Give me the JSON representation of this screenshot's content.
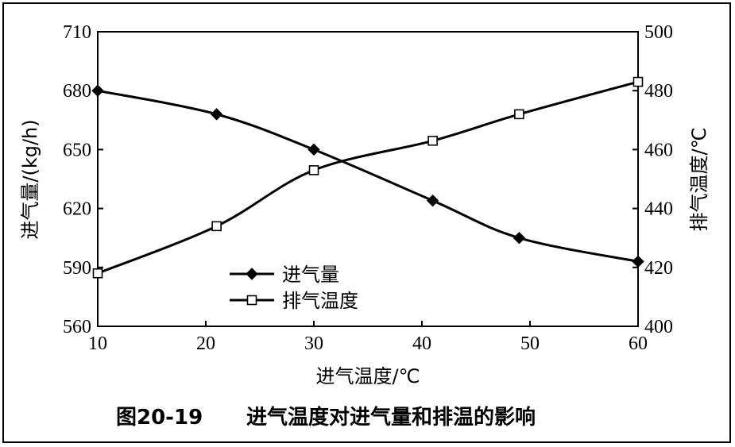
{
  "caption": {
    "number": "图20-19",
    "title": "进气温度对进气量和排温的影响"
  },
  "chart_data": {
    "type": "line",
    "xlabel": "进气温度/℃",
    "ylabel_left": "进气量/(kg/h)",
    "ylabel_right": "排气温度/℃",
    "xlim": [
      10,
      60
    ],
    "ylim_left": [
      560,
      710
    ],
    "ylim_right": [
      400,
      500
    ],
    "x_ticks": [
      "10",
      "20",
      "30",
      "40",
      "50",
      "60"
    ],
    "y_ticks_left": [
      "560",
      "590",
      "620",
      "650",
      "680",
      "710"
    ],
    "y_ticks_right": [
      "400",
      "420",
      "440",
      "460",
      "480",
      "500"
    ],
    "grid": false,
    "legend_position": "lower-left",
    "series": [
      {
        "name": "进气量",
        "axis": "left",
        "marker": "diamond-filled",
        "x": [
          10,
          21,
          30,
          41,
          49,
          60
        ],
        "y": [
          680,
          668,
          650,
          624,
          605,
          593
        ]
      },
      {
        "name": "排气温度",
        "axis": "right",
        "marker": "square-open",
        "x": [
          10,
          21,
          30,
          41,
          49,
          60
        ],
        "y": [
          418,
          434,
          453,
          463,
          472,
          483
        ]
      }
    ]
  }
}
